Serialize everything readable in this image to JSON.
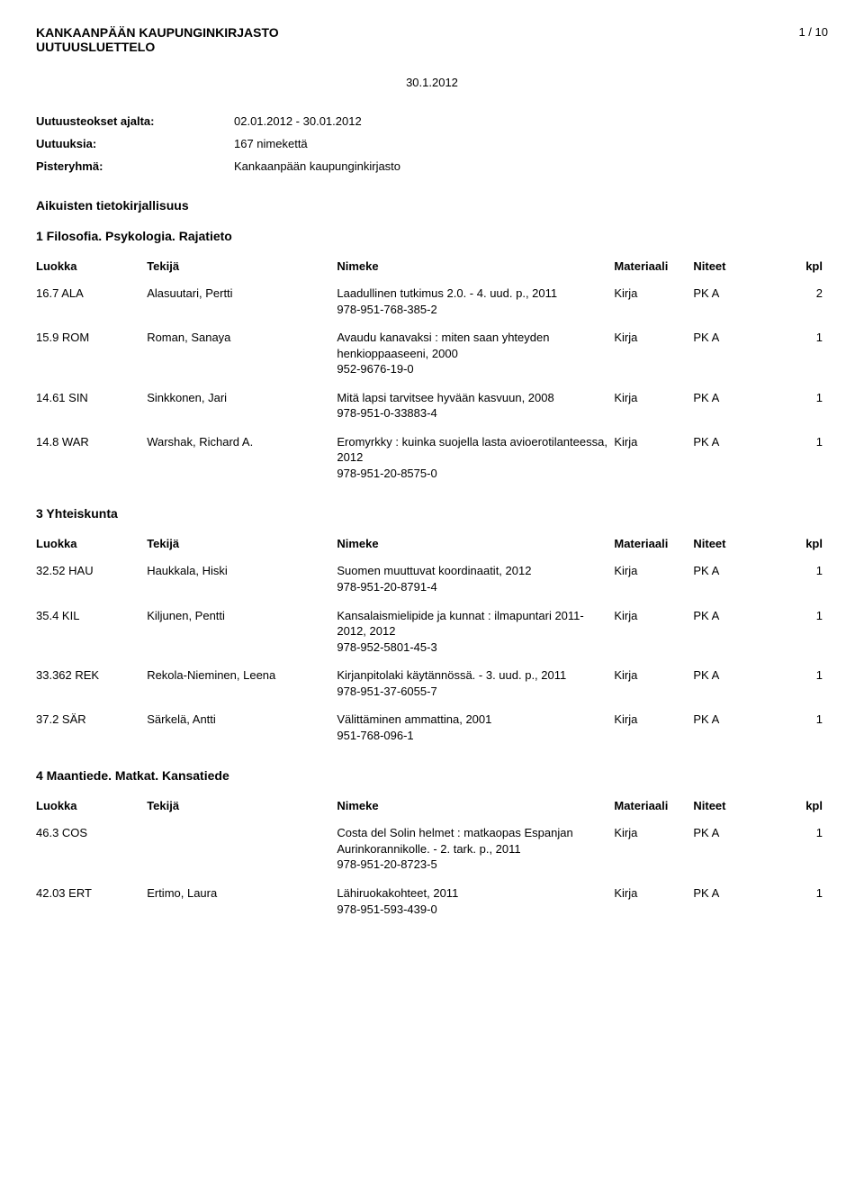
{
  "header": {
    "title1": "KANKAANPÄÄN KAUPUNGINKIRJASTO",
    "title2": "UUTUUSLUETTELO",
    "page": "1 / 10",
    "date": "30.1.2012"
  },
  "meta": [
    {
      "label": "Uutuusteokset ajalta:",
      "value": "02.01.2012 - 30.01.2012"
    },
    {
      "label": "Uutuuksia:",
      "value": "167 nimekettä"
    },
    {
      "label": "Pisteryhmä:",
      "value": "Kankaanpään kaupunginkirjasto"
    }
  ],
  "top_section": "Aikuisten tietokirjallisuus",
  "columns": {
    "luokka": "Luokka",
    "tekija": "Tekijä",
    "nimeke": "Nimeke",
    "materiaali": "Materiaali",
    "niteet": "Niteet",
    "kpl": "kpl"
  },
  "sections": [
    {
      "title": "1 Filosofia. Psykologia. Rajatieto",
      "rows": [
        {
          "luokka": "16.7 ALA",
          "tekija": "Alasuutari, Pertti",
          "nimeke": "Laadullinen tutkimus 2.0. - 4. uud. p., 2011\n978-951-768-385-2",
          "materiaali": "Kirja",
          "niteet": "PK A",
          "kpl": "2"
        },
        {
          "luokka": "15.9 ROM",
          "tekija": "Roman, Sanaya",
          "nimeke": "Avaudu kanavaksi : miten saan yhteyden henkioppaaseeni, 2000\n952-9676-19-0",
          "materiaali": "Kirja",
          "niteet": "PK A",
          "kpl": "1"
        },
        {
          "luokka": "14.61 SIN",
          "tekija": "Sinkkonen, Jari",
          "nimeke": "Mitä lapsi tarvitsee hyvään kasvuun, 2008\n978-951-0-33883-4",
          "materiaali": "Kirja",
          "niteet": "PK A",
          "kpl": "1"
        },
        {
          "luokka": "14.8 WAR",
          "tekija": "Warshak, Richard A.",
          "nimeke": "Eromyrkky : kuinka suojella lasta avioerotilanteessa, 2012\n978-951-20-8575-0",
          "materiaali": "Kirja",
          "niteet": "PK A",
          "kpl": "1"
        }
      ]
    },
    {
      "title": "3 Yhteiskunta",
      "rows": [
        {
          "luokka": "32.52 HAU",
          "tekija": "Haukkala, Hiski",
          "nimeke": "Suomen muuttuvat koordinaatit, 2012\n978-951-20-8791-4",
          "materiaali": "Kirja",
          "niteet": "PK A",
          "kpl": "1"
        },
        {
          "luokka": "35.4 KIL",
          "tekija": "Kiljunen, Pentti",
          "nimeke": "Kansalaismielipide ja kunnat : ilmapuntari 2011-2012, 2012\n978-952-5801-45-3",
          "materiaali": "Kirja",
          "niteet": "PK A",
          "kpl": "1"
        },
        {
          "luokka": "33.362 REK",
          "tekija": "Rekola-Nieminen, Leena",
          "nimeke": "Kirjanpitolaki käytännössä. - 3. uud. p., 2011\n978-951-37-6055-7",
          "materiaali": "Kirja",
          "niteet": "PK A",
          "kpl": "1"
        },
        {
          "luokka": "37.2 SÄR",
          "tekija": "Särkelä, Antti",
          "nimeke": "Välittäminen ammattina, 2001\n951-768-096-1",
          "materiaali": "Kirja",
          "niteet": "PK A",
          "kpl": "1"
        }
      ]
    },
    {
      "title": "4 Maantiede. Matkat. Kansatiede",
      "rows": [
        {
          "luokka": "46.3 COS",
          "tekija": "",
          "nimeke": "Costa del Solin helmet : matkaopas Espanjan Aurinkorannikolle. - 2. tark. p., 2011\n978-951-20-8723-5",
          "materiaali": "Kirja",
          "niteet": "PK A",
          "kpl": "1"
        },
        {
          "luokka": "42.03 ERT",
          "tekija": "Ertimo, Laura",
          "nimeke": "Lähiruokakohteet, 2011\n978-951-593-439-0",
          "materiaali": "Kirja",
          "niteet": "PK A",
          "kpl": "1"
        }
      ]
    }
  ]
}
